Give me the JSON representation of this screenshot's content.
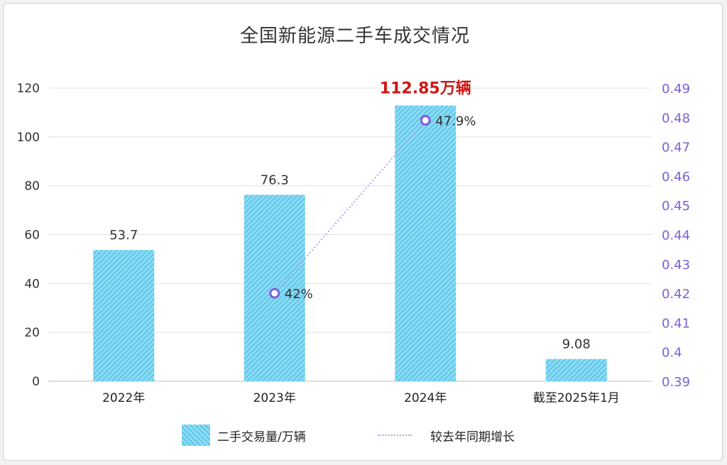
{
  "title": "全国新能源二手车成交情况",
  "colors": {
    "bar_fill": "#8fdcf3",
    "bar_stripe": "#5bc6ea",
    "line": "#b3a3f0",
    "point_stroke": "#7d5fd8",
    "secondary_axis": "#7d5fd8",
    "highlight_label": "#cc1616",
    "grid": "#e2e2e2"
  },
  "chart_data": {
    "type": "bar",
    "categories": [
      "2022年",
      "2023年",
      "2024年",
      "截至2025年1月"
    ],
    "series": [
      {
        "name": "二手交易量/万辆",
        "type": "bar",
        "axis": "left",
        "values": [
          53.7,
          76.3,
          112.85,
          9.08
        ],
        "labels": [
          "53.7",
          "76.3",
          "112.85万辆",
          "9.08"
        ]
      },
      {
        "name": "较去年同期增长",
        "type": "line",
        "axis": "right",
        "values": [
          null,
          0.42,
          0.479,
          null
        ],
        "labels": [
          "",
          "42%",
          "47.9%",
          ""
        ]
      }
    ],
    "y_left": {
      "ylim": [
        0,
        120
      ],
      "ticks": [
        "0",
        "20",
        "40",
        "60",
        "80",
        "100",
        "120"
      ]
    },
    "y_right": {
      "ylim": [
        0.39,
        0.49
      ],
      "ticks": [
        "0.39",
        "0.4",
        "0.41",
        "0.42",
        "0.43",
        "0.44",
        "0.45",
        "0.46",
        "0.47",
        "0.48",
        "0.49"
      ]
    },
    "grid": true,
    "legend_position": "bottom"
  }
}
